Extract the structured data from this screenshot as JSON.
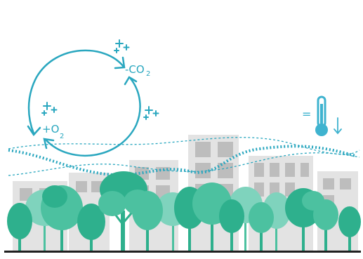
{
  "labels": {
    "minus_co2": "-CO",
    "minus_co2_sub": "2",
    "plus_o2": "+O",
    "plus_o2_sub": "2",
    "thermo_equal": "="
  },
  "colors": {
    "teal": "#2aa7bf",
    "thermo": "#3fb3cf",
    "building": "#e3e3e3",
    "window": "#bdbdbd",
    "tree_dark": "#2eb08d",
    "tree_mid": "#4cc1a0",
    "tree_light": "#7fd3bd",
    "ground": "#202020"
  },
  "icons": {
    "cycle": "co2-o2-cycle-icon",
    "sparkles": "sparkle-icon",
    "thermometer": "thermometer-down-icon",
    "wind": "wind-wave-icon"
  }
}
